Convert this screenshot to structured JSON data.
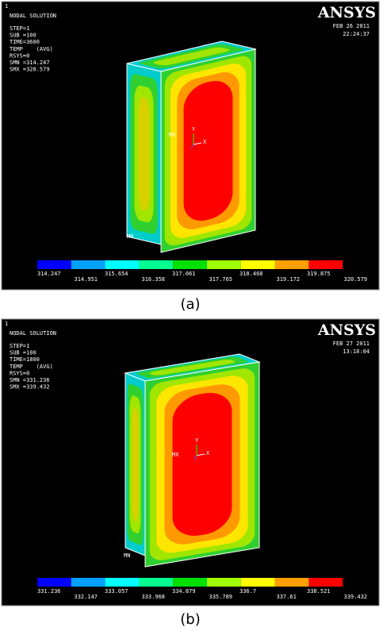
{
  "panels": [
    {
      "index": "1",
      "title": "NODAL SOLUTION",
      "info": [
        "STEP=1",
        "SUB =100",
        "TIME=3600",
        "TEMP    (AVG)",
        "RSYS=0",
        "SMN =314.247",
        "SMX =320.579"
      ],
      "logo": "ANSYS",
      "date": "FEB 26 2011",
      "time": "22:24:37",
      "max_label": "MX",
      "min_label": "MN",
      "axis_y": "Y",
      "axis_x": "X",
      "legend": [
        "314.247",
        "314.951",
        "315.654",
        "316.358",
        "317.061",
        "317.765",
        "318.468",
        "319.172",
        "319.875",
        "320.579"
      ],
      "caption": "(a)"
    },
    {
      "index": "1",
      "title": "NODAL SOLUTION",
      "info": [
        "STEP=1",
        "SUB =100",
        "TIME=1800",
        "TEMP    (AVG)",
        "RSYS=0",
        "SMN =331.236",
        "SMX =339.432"
      ],
      "logo": "ANSYS",
      "date": "FEB 27 2011",
      "time": "13:18:04",
      "max_label": "MX",
      "min_label": "MN",
      "axis_y": "Y",
      "axis_x": "X",
      "legend": [
        "331.236",
        "332.147",
        "333.057",
        "333.968",
        "334.879",
        "335.789",
        "336.7",
        "337.61",
        "338.521",
        "339.432"
      ],
      "caption": "(b)"
    }
  ]
}
